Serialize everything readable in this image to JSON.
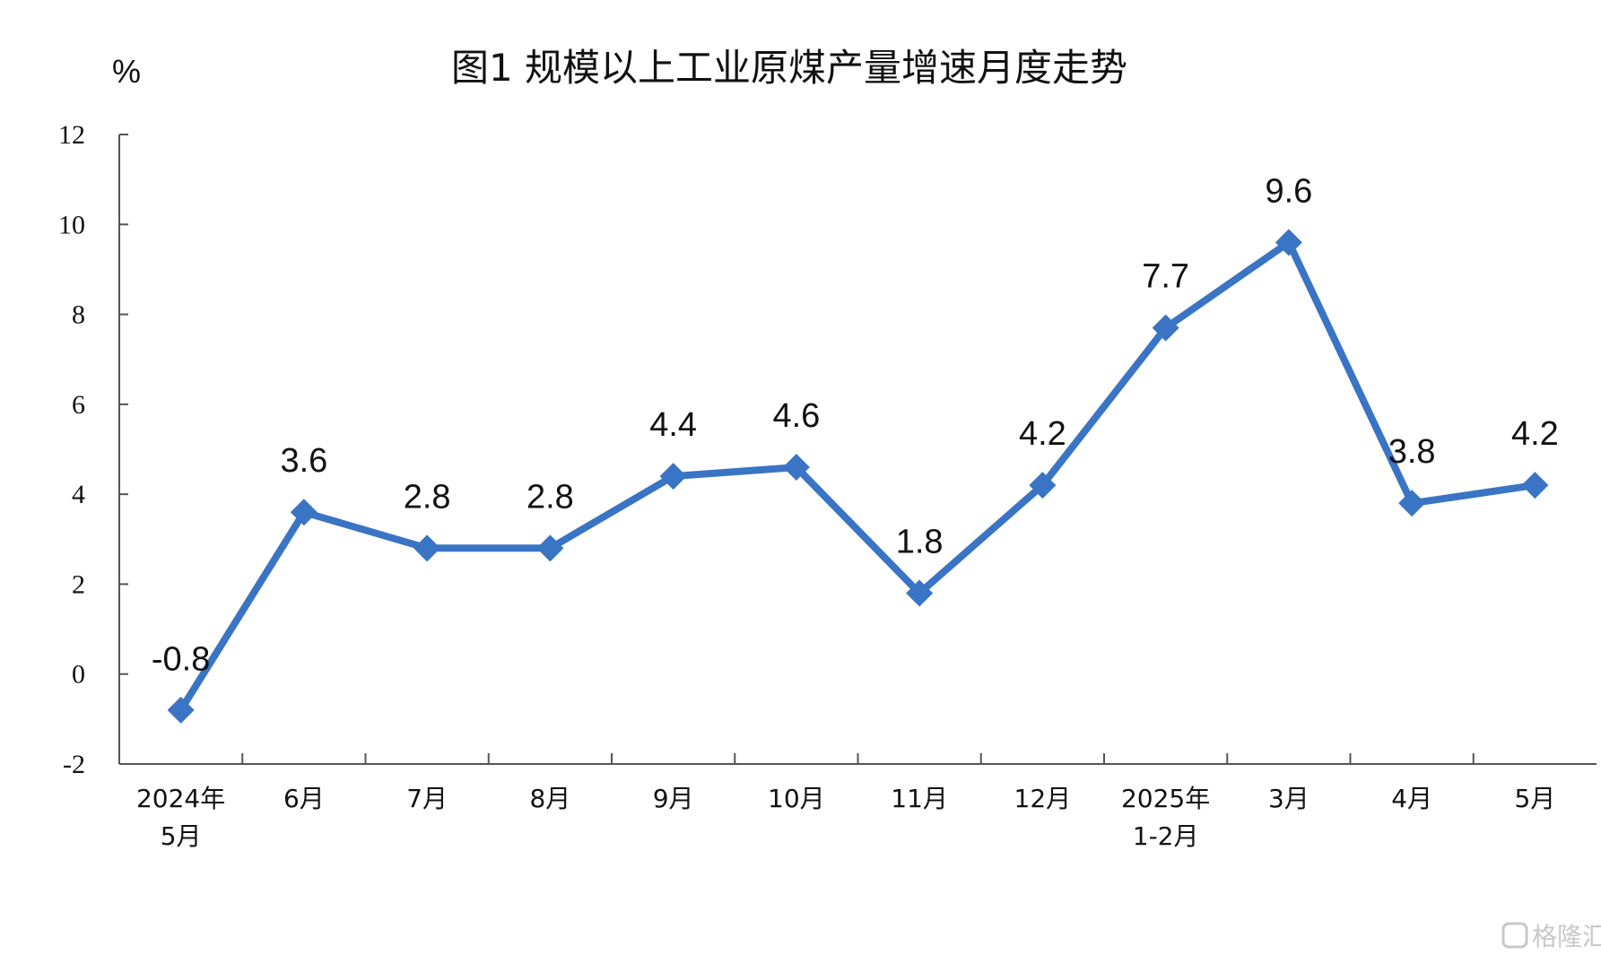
{
  "chart_data": {
    "type": "line",
    "title": "图1  规模以上工业原煤产量增速月度走势",
    "ylabel": "%",
    "ylim": [
      -2,
      12
    ],
    "yticks": [
      -2,
      0,
      2,
      4,
      6,
      8,
      10,
      12
    ],
    "categories": [
      [
        "2024年",
        "5月"
      ],
      [
        "6月"
      ],
      [
        "7月"
      ],
      [
        "8月"
      ],
      [
        "9月"
      ],
      [
        "10月"
      ],
      [
        "11月"
      ],
      [
        "12月"
      ],
      [
        "2025年",
        "1-2月"
      ],
      [
        "3月"
      ],
      [
        "4月"
      ],
      [
        "5月"
      ]
    ],
    "values": [
      -0.8,
      3.6,
      2.8,
      2.8,
      4.4,
      4.6,
      1.8,
      4.2,
      7.7,
      9.6,
      3.8,
      4.2
    ],
    "value_labels": [
      "-0.8",
      "3.6",
      "2.8",
      "2.8",
      "4.4",
      "4.6",
      "1.8",
      "4.2",
      "7.7",
      "9.6",
      "3.8",
      "4.2"
    ],
    "series_color": "#3a74c4",
    "grid": false,
    "legend": "none"
  },
  "watermark": {
    "icon": "logo-icon",
    "text": "格隆汇"
  }
}
